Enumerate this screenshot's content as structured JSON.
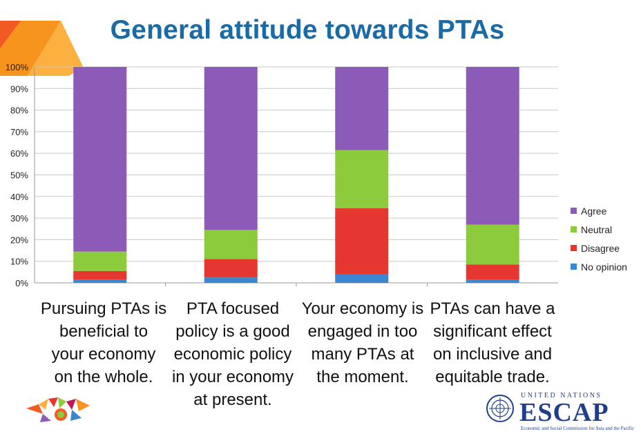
{
  "title": "General attitude towards PTAs",
  "chart_data": {
    "type": "bar",
    "stacked": true,
    "percent_stacked": true,
    "categories": [
      "Pursuing PTAs is beneficial to your economy on the whole.",
      "PTA focused policy is a good economic policy in your economy at present.",
      "Your economy is engaged in too many PTAs at the moment.",
      "PTAs can have a significant effect on inclusive and equitable trade."
    ],
    "series": [
      {
        "name": "No opinion",
        "color": "#3a86d0",
        "values": [
          1.5,
          2.5,
          4,
          1.5
        ]
      },
      {
        "name": "Disagree",
        "color": "#e5372f",
        "values": [
          4,
          8.5,
          30.5,
          7
        ]
      },
      {
        "name": "Neutral",
        "color": "#8ccb3c",
        "values": [
          9,
          13.5,
          27,
          18.5
        ]
      },
      {
        "name": "Agree",
        "color": "#8c5bb7",
        "values": [
          85.5,
          75.5,
          38.5,
          73
        ]
      }
    ],
    "legend_order": [
      "Agree",
      "Neutral",
      "Disagree",
      "No opinion"
    ],
    "yticks": [
      "0%",
      "10%",
      "20%",
      "30%",
      "40%",
      "50%",
      "60%",
      "70%",
      "80%",
      "90%",
      "100%"
    ],
    "ylim": [
      0,
      100
    ],
    "grid": true,
    "legend_position": "right"
  },
  "category_labels": [
    [
      "Pursuing PTAs is",
      "beneficial to",
      "your economy",
      "on the whole."
    ],
    [
      "PTA focused",
      "policy is a good",
      "economic policy",
      "in your economy",
      "at present."
    ],
    [
      "Your economy is",
      "engaged in too",
      "many PTAs at",
      "the moment."
    ],
    [
      "PTAs can have a",
      "significant effect",
      "on inclusive and",
      "equitable trade."
    ]
  ],
  "logo": {
    "un_text": "UNITED NATIONS",
    "name": "ESCAP",
    "subtitle": "Economic and Social Commission for Asia and the Pacific"
  }
}
